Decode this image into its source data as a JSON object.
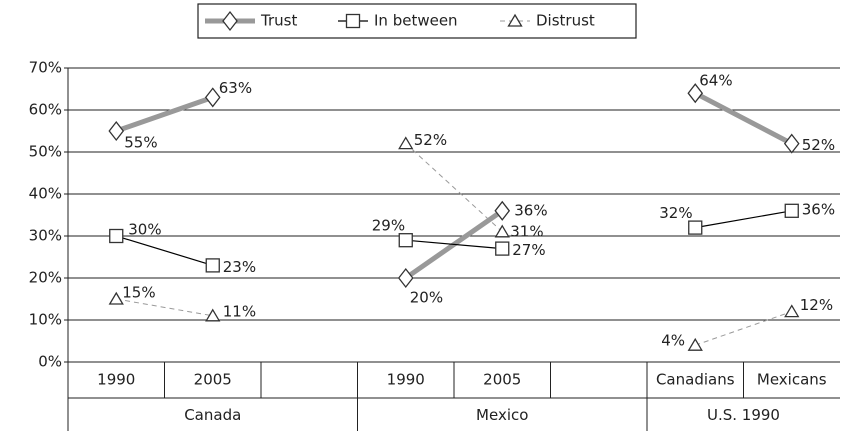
{
  "chart_data": {
    "type": "line",
    "groups": [
      {
        "name": "Canada",
        "categories": [
          "1990",
          "2005",
          null
        ]
      },
      {
        "name": "Mexico",
        "categories": [
          "1990",
          "2005",
          null
        ]
      },
      {
        "name": "U.S. 1990",
        "categories": [
          "Canadians",
          "Mexicans"
        ]
      }
    ],
    "series": [
      {
        "name": "Trust",
        "color": "#999999",
        "marker": "diamond",
        "values": [
          55,
          63,
          null,
          20,
          36,
          null,
          64,
          52
        ],
        "value_labels": [
          "55%",
          "63%",
          null,
          "20%",
          "36%",
          null,
          "64%",
          "52%"
        ]
      },
      {
        "name": "In between",
        "color": "#000000",
        "marker": "square",
        "values": [
          30,
          23,
          null,
          29,
          27,
          null,
          32,
          36
        ],
        "value_labels": [
          "30%",
          "23%",
          null,
          "29%",
          "27%",
          null,
          "32%",
          "36%"
        ]
      },
      {
        "name": "Distrust",
        "color": "#999999",
        "marker": "triangle",
        "dashed": true,
        "values": [
          15,
          11,
          null,
          52,
          31,
          null,
          4,
          12
        ],
        "value_labels": [
          "15%",
          "11%",
          null,
          "52%",
          "31%",
          null,
          "4%",
          "12%"
        ]
      }
    ],
    "ylim": [
      0,
      70
    ],
    "yticks": [
      {
        "value": 0,
        "label": "0%"
      },
      {
        "value": 10,
        "label": "10%"
      },
      {
        "value": 20,
        "label": "20%"
      },
      {
        "value": 30,
        "label": "30%"
      },
      {
        "value": 40,
        "label": "40%"
      },
      {
        "value": 50,
        "label": "50%"
      },
      {
        "value": 60,
        "label": "60%"
      },
      {
        "value": 70,
        "label": "70%"
      }
    ],
    "grid": true,
    "legend": "top"
  }
}
